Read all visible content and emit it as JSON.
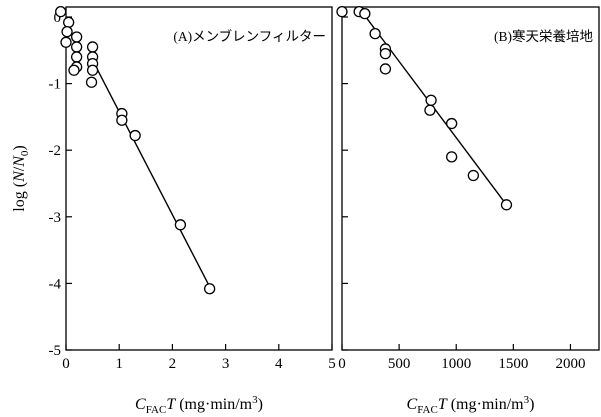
{
  "chart_data": [
    {
      "type": "scatter",
      "panel_title": "(A)メンブレンフィルター",
      "xlabel": "C_FAC T (mg·min/m³)",
      "ylabel": "log (N/N₀)",
      "xlim": [
        0,
        5
      ],
      "ylim": [
        -5,
        0.15
      ],
      "x_ticks": [
        0,
        1,
        2,
        3,
        4,
        5
      ],
      "y_ticks": [
        0,
        -1,
        -2,
        -3,
        -4,
        -5
      ],
      "points": [
        [
          -0.1,
          0.08
        ],
        [
          0.05,
          -0.08
        ],
        [
          0.02,
          -0.22
        ],
        [
          0.0,
          -0.38
        ],
        [
          0.2,
          -0.3
        ],
        [
          0.2,
          -0.45
        ],
        [
          0.2,
          -0.6
        ],
        [
          0.2,
          -0.75
        ],
        [
          0.15,
          -0.8
        ],
        [
          0.5,
          -0.45
        ],
        [
          0.5,
          -0.6
        ],
        [
          0.5,
          -0.7
        ],
        [
          0.5,
          -0.8
        ],
        [
          0.48,
          -0.98
        ],
        [
          1.05,
          -1.45
        ],
        [
          1.05,
          -1.55
        ],
        [
          1.3,
          -1.78
        ],
        [
          2.15,
          -3.12
        ],
        [
          2.7,
          -4.08
        ]
      ],
      "fit_line": [
        [
          0.5,
          -0.65
        ],
        [
          2.7,
          -4.05
        ]
      ]
    },
    {
      "type": "scatter",
      "panel_title": "(B)寒天栄養培地",
      "xlabel": "C_FAC T (mg·min/m³)",
      "ylabel": "log (N/N₀)",
      "xlim": [
        0,
        2250
      ],
      "ylim": [
        -5,
        0.15
      ],
      "x_ticks": [
        0,
        500,
        1000,
        1500,
        2000
      ],
      "y_ticks": [
        0,
        -1,
        -2,
        -3,
        -4,
        -5
      ],
      "points": [
        [
          0,
          0.08
        ],
        [
          150,
          0.08
        ],
        [
          200,
          0.05
        ],
        [
          290,
          -0.25
        ],
        [
          380,
          -0.48
        ],
        [
          380,
          -0.55
        ],
        [
          380,
          -0.78
        ],
        [
          780,
          -1.25
        ],
        [
          770,
          -1.4
        ],
        [
          960,
          -1.6
        ],
        [
          960,
          -2.1
        ],
        [
          1150,
          -2.38
        ],
        [
          1440,
          -2.82
        ]
      ],
      "fit_line": [
        [
          200,
          0.02
        ],
        [
          1440,
          -2.82
        ]
      ]
    }
  ]
}
